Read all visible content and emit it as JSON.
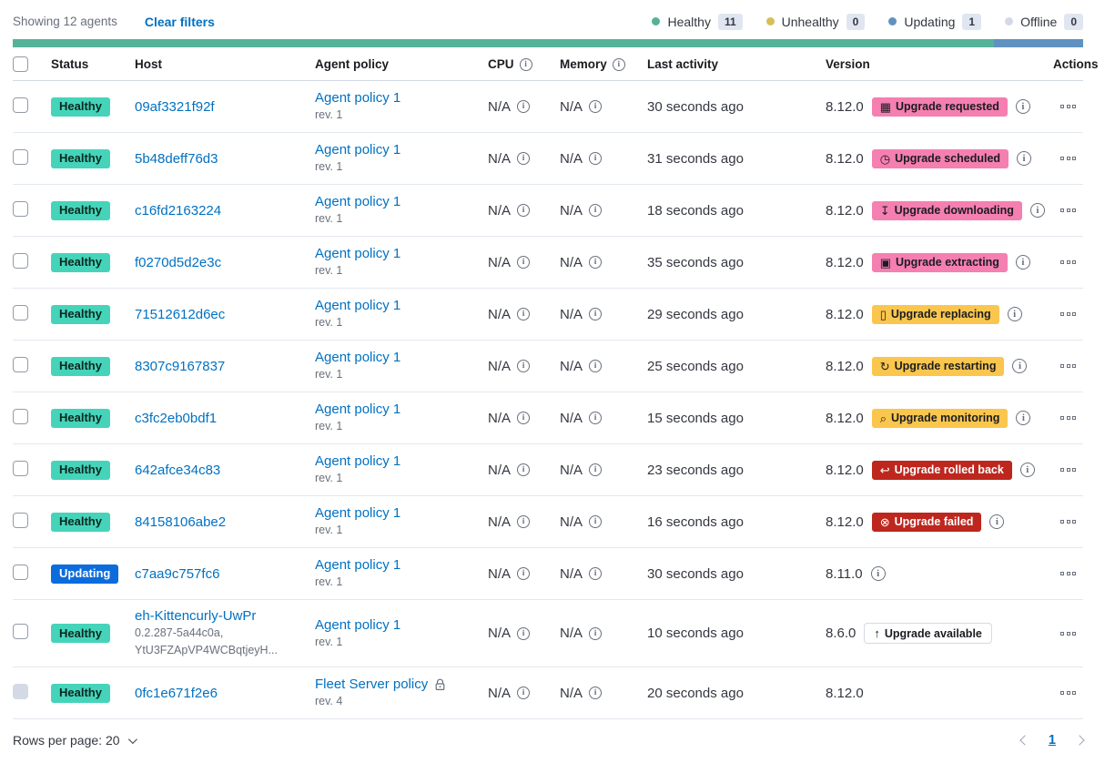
{
  "toolbar": {
    "showing": "Showing 12 agents",
    "clear_filters": "Clear filters",
    "legend": [
      {
        "label": "Healthy",
        "count": "11",
        "color": "#54B399"
      },
      {
        "label": "Unhealthy",
        "count": "0",
        "color": "#D6BF57"
      },
      {
        "label": "Updating",
        "count": "1",
        "color": "#6092C0"
      },
      {
        "label": "Offline",
        "count": "0",
        "color": "#D3DAE6"
      }
    ]
  },
  "status_bar": {
    "segments": [
      {
        "status": "healthy",
        "color": "#54B399",
        "fraction": 0.9167
      },
      {
        "status": "updating",
        "color": "#6092C0",
        "fraction": 0.0833
      }
    ]
  },
  "colors": {
    "healthy_badge": "#45D4BA",
    "updating_badge": "#0B6CDC",
    "upgrade_pink": "#F57FB1",
    "upgrade_yellow": "#FBC64D",
    "upgrade_red": "#BD271E",
    "link": "#0071C2"
  },
  "table": {
    "headers": {
      "status": "Status",
      "host": "Host",
      "policy": "Agent policy",
      "cpu": "CPU",
      "memory": "Memory",
      "last_activity": "Last activity",
      "version": "Version",
      "actions": "Actions"
    },
    "rows": [
      {
        "status": {
          "label": "Healthy",
          "variant": "healthy"
        },
        "host": "09af3321f92f",
        "policy": "Agent policy 1",
        "policy_rev": "rev. 1",
        "cpu": "N/A",
        "memory": "N/A",
        "last_activity": "30 seconds ago",
        "version": "8.12.0",
        "upgrade": {
          "label": "Upgrade requested",
          "icon": "calendar",
          "icon_glyph": "▦",
          "variant": "accent"
        },
        "upgrade_info": true
      },
      {
        "status": {
          "label": "Healthy",
          "variant": "healthy"
        },
        "host": "5b48deff76d3",
        "policy": "Agent policy 1",
        "policy_rev": "rev. 1",
        "cpu": "N/A",
        "memory": "N/A",
        "last_activity": "31 seconds ago",
        "version": "8.12.0",
        "upgrade": {
          "label": "Upgrade scheduled",
          "icon": "clock",
          "icon_glyph": "◷",
          "variant": "accent"
        },
        "upgrade_info": true
      },
      {
        "status": {
          "label": "Healthy",
          "variant": "healthy"
        },
        "host": "c16fd2163224",
        "policy": "Agent policy 1",
        "policy_rev": "rev. 1",
        "cpu": "N/A",
        "memory": "N/A",
        "last_activity": "18 seconds ago",
        "version": "8.12.0",
        "upgrade": {
          "label": "Upgrade downloading",
          "icon": "download",
          "icon_glyph": "↧",
          "variant": "accent"
        },
        "upgrade_info": true
      },
      {
        "status": {
          "label": "Healthy",
          "variant": "healthy"
        },
        "host": "f0270d5d2e3c",
        "policy": "Agent policy 1",
        "policy_rev": "rev. 1",
        "cpu": "N/A",
        "memory": "N/A",
        "last_activity": "35 seconds ago",
        "version": "8.12.0",
        "upgrade": {
          "label": "Upgrade extracting",
          "icon": "package",
          "icon_glyph": "▣",
          "variant": "accent"
        },
        "upgrade_info": true
      },
      {
        "status": {
          "label": "Healthy",
          "variant": "healthy"
        },
        "host": "71512612d6ec",
        "policy": "Agent policy 1",
        "policy_rev": "rev. 1",
        "cpu": "N/A",
        "memory": "N/A",
        "last_activity": "29 seconds ago",
        "version": "8.12.0",
        "upgrade": {
          "label": "Upgrade replacing",
          "icon": "document",
          "icon_glyph": "▯",
          "variant": "warning"
        },
        "upgrade_info": true
      },
      {
        "status": {
          "label": "Healthy",
          "variant": "healthy"
        },
        "host": "8307c9167837",
        "policy": "Agent policy 1",
        "policy_rev": "rev. 1",
        "cpu": "N/A",
        "memory": "N/A",
        "last_activity": "25 seconds ago",
        "version": "8.12.0",
        "upgrade": {
          "label": "Upgrade restarting",
          "icon": "refresh",
          "icon_glyph": "↻",
          "variant": "warning"
        },
        "upgrade_info": true
      },
      {
        "status": {
          "label": "Healthy",
          "variant": "healthy"
        },
        "host": "c3fc2eb0bdf1",
        "policy": "Agent policy 1",
        "policy_rev": "rev. 1",
        "cpu": "N/A",
        "memory": "N/A",
        "last_activity": "15 seconds ago",
        "version": "8.12.0",
        "upgrade": {
          "label": "Upgrade monitoring",
          "icon": "inspect",
          "icon_glyph": "⌕",
          "variant": "warning"
        },
        "upgrade_info": true
      },
      {
        "status": {
          "label": "Healthy",
          "variant": "healthy"
        },
        "host": "642afce34c83",
        "policy": "Agent policy 1",
        "policy_rev": "rev. 1",
        "cpu": "N/A",
        "memory": "N/A",
        "last_activity": "23 seconds ago",
        "version": "8.12.0",
        "upgrade": {
          "label": "Upgrade rolled back",
          "icon": "return-arrow",
          "icon_glyph": "↩",
          "variant": "danger"
        },
        "upgrade_info": true
      },
      {
        "status": {
          "label": "Healthy",
          "variant": "healthy"
        },
        "host": "84158106abe2",
        "policy": "Agent policy 1",
        "policy_rev": "rev. 1",
        "cpu": "N/A",
        "memory": "N/A",
        "last_activity": "16 seconds ago",
        "version": "8.12.0",
        "upgrade": {
          "label": "Upgrade failed",
          "icon": "error-cross",
          "icon_glyph": "⊗",
          "variant": "danger"
        },
        "upgrade_info": true
      },
      {
        "status": {
          "label": "Updating",
          "variant": "updating"
        },
        "host": "c7aa9c757fc6",
        "policy": "Agent policy 1",
        "policy_rev": "rev. 1",
        "cpu": "N/A",
        "memory": "N/A",
        "last_activity": "30 seconds ago",
        "version": "8.11.0",
        "upgrade": null,
        "upgrade_info": true
      },
      {
        "status": {
          "label": "Healthy",
          "variant": "healthy"
        },
        "host": "eh-Kittencurly-UwPr",
        "host_sub1": "0.2.287-5a44c0a,",
        "host_sub2": "YtU3FZApVP4WCBqtjeyH...",
        "policy": "Agent policy 1",
        "policy_rev": "rev. 1",
        "cpu": "N/A",
        "memory": "N/A",
        "last_activity": "10 seconds ago",
        "version": "8.6.0",
        "upgrade": {
          "label": "Upgrade available",
          "icon": "arrow-up",
          "icon_glyph": "↑",
          "variant": "hollow"
        },
        "upgrade_info": false,
        "tall": true
      },
      {
        "status": {
          "label": "Healthy",
          "variant": "healthy"
        },
        "host": "0fc1e671f2e6",
        "policy": "Fleet Server policy",
        "policy_rev": "rev. 4",
        "policy_locked": true,
        "cpu": "N/A",
        "memory": "N/A",
        "last_activity": "20 seconds ago",
        "version": "8.12.0",
        "upgrade": null,
        "upgrade_info": false,
        "checkbox_disabled": true
      }
    ]
  },
  "footer": {
    "rows_per_page": "Rows per page: 20",
    "page": "1"
  }
}
